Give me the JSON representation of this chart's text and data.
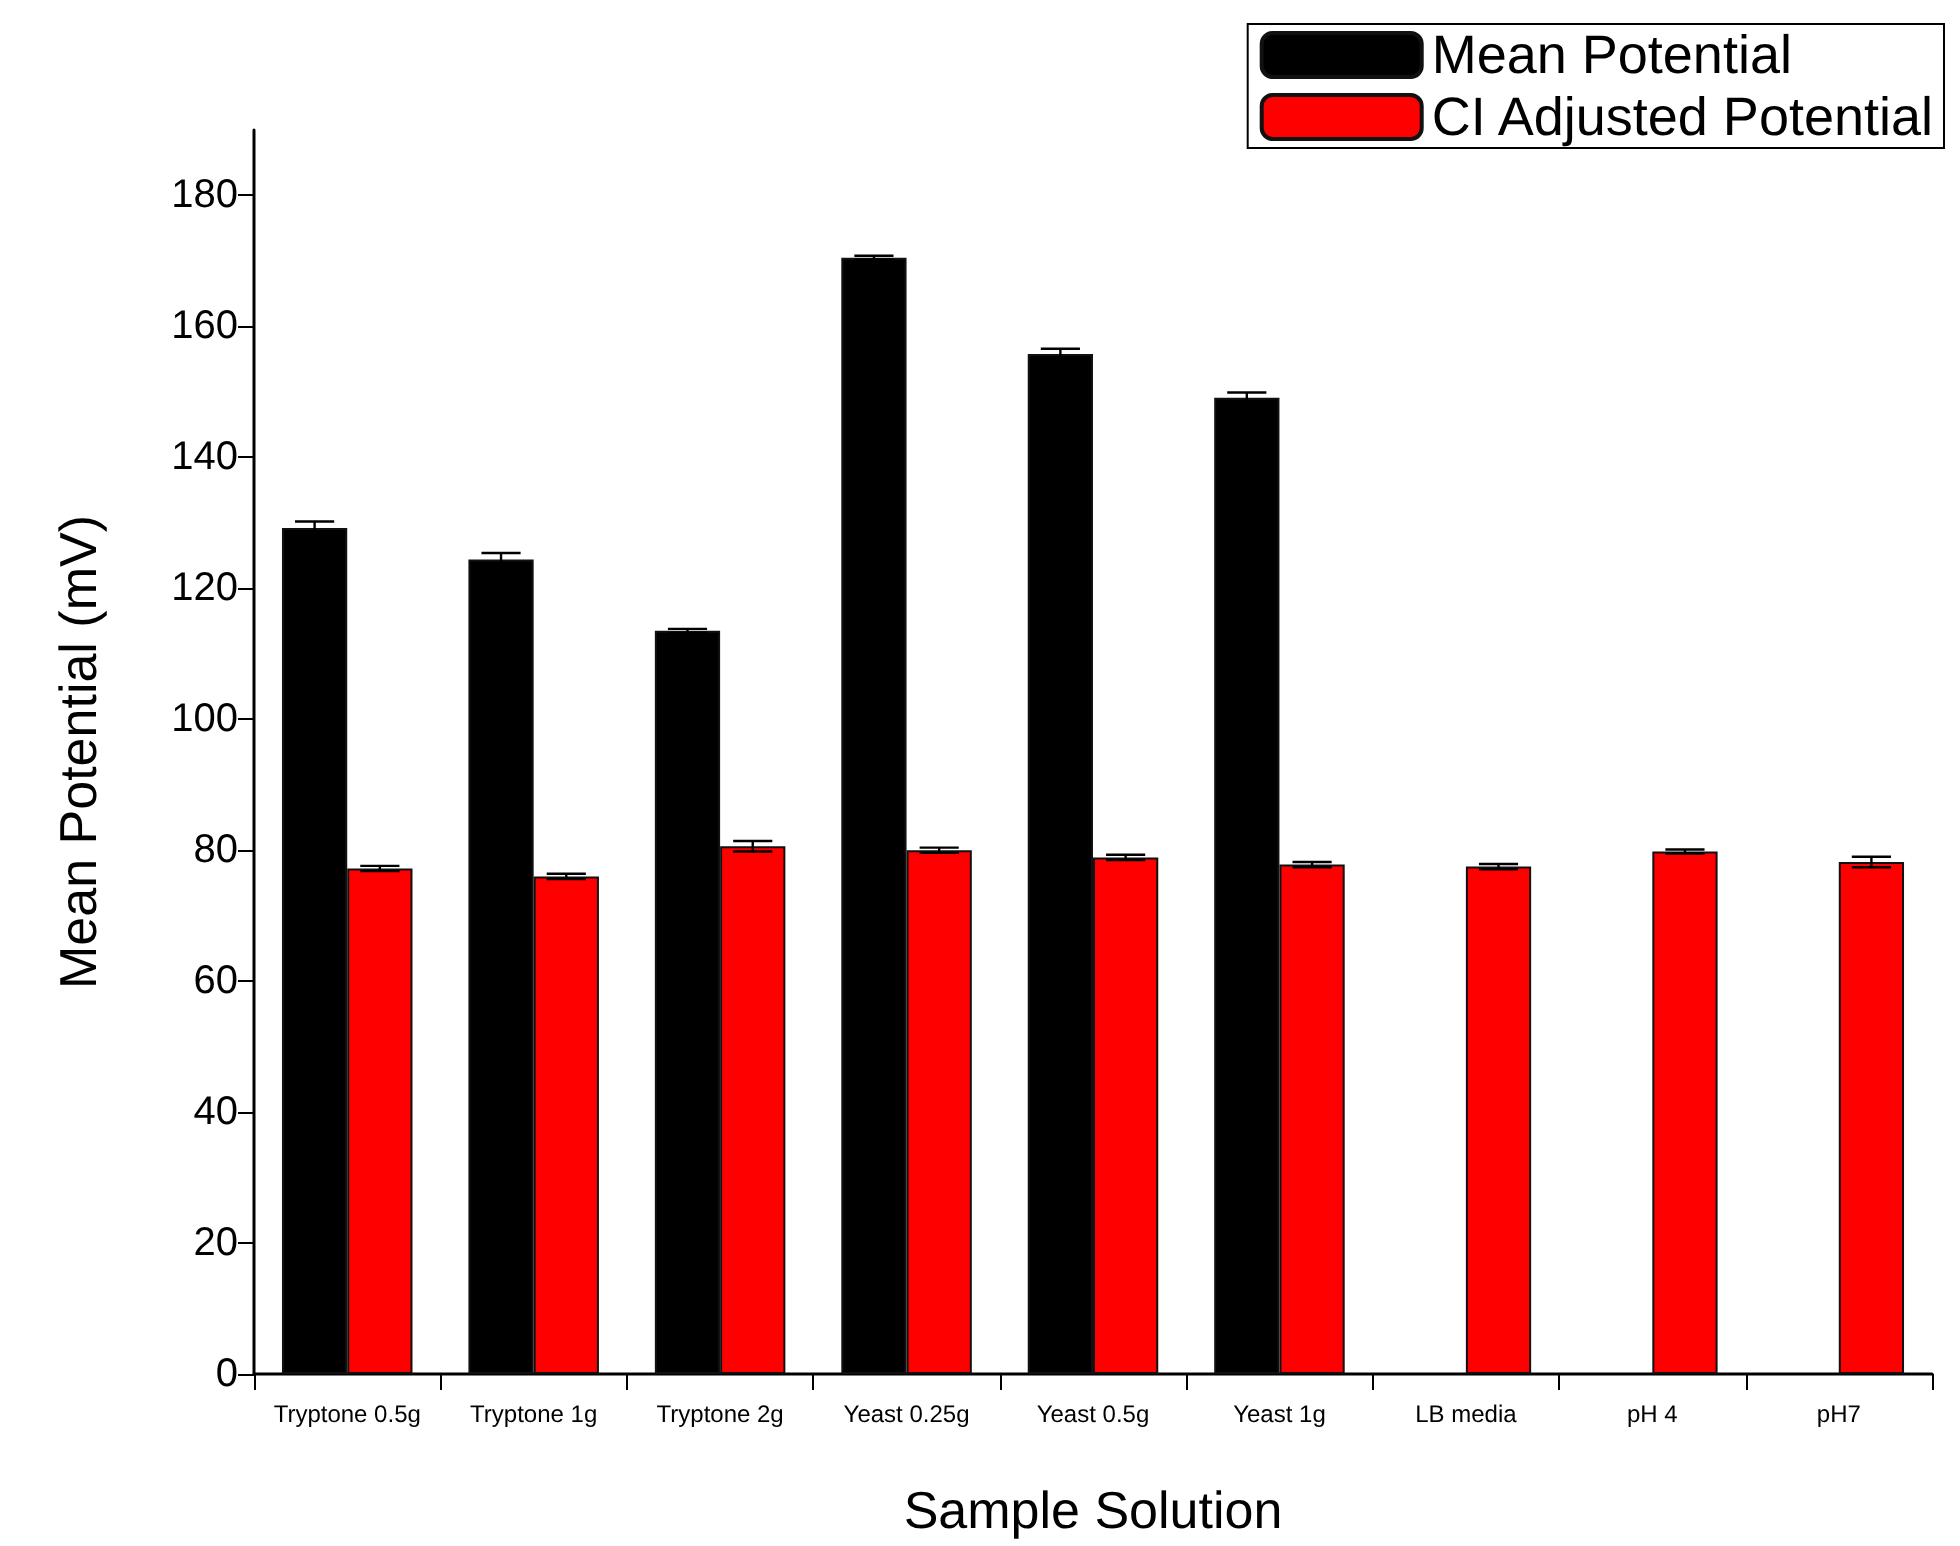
{
  "chart_data": {
    "type": "bar",
    "xlabel": "Sample Solution",
    "ylabel": "Mean Potential (mV)",
    "categories": [
      "Tryptone 0.5g",
      "Tryptone 1g",
      "Tryptone 2g",
      "Yeast 0.25g",
      "Yeast 0.5g",
      "Yeast 1g",
      "LB media",
      "pH 4",
      "pH7"
    ],
    "series": [
      {
        "name": "Mean Potential",
        "color": "#000000",
        "values": [
          129.2,
          124.4,
          113.5,
          170.5,
          155.8,
          149.1,
          null,
          null,
          null
        ],
        "errors": [
          1,
          1,
          0.3,
          0.3,
          0.8,
          0.8,
          null,
          null,
          null
        ]
      },
      {
        "name": "CI Adjusted Potential",
        "color": "#ff0000",
        "values": [
          77.2,
          76.0,
          80.6,
          80.0,
          78.9,
          77.8,
          77.5,
          79.8,
          78.2
        ],
        "errors": [
          0.4,
          0.4,
          0.8,
          0.4,
          0.4,
          0.4,
          0.4,
          0.3,
          0.8
        ]
      }
    ],
    "ylim": [
      0,
      190
    ],
    "yticks": [
      0,
      20,
      40,
      60,
      80,
      100,
      120,
      140,
      160,
      180
    ],
    "grid": false,
    "legend": "top right"
  }
}
